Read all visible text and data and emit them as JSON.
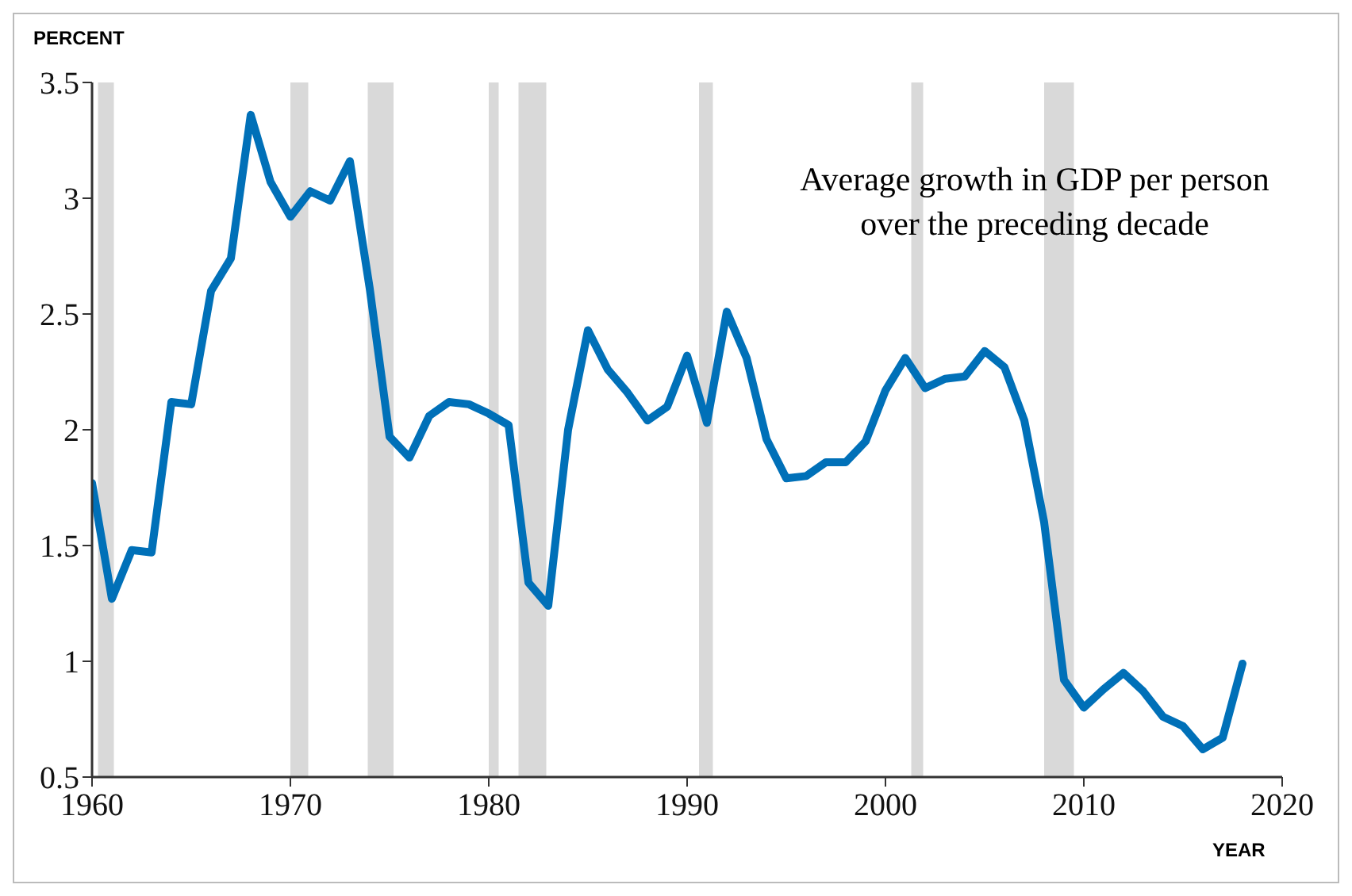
{
  "chart_data": {
    "type": "line",
    "ylabel": "PERCENT",
    "xlabel": "YEAR",
    "annotations": [
      "Average growth in GDP per person over the preceding decade"
    ],
    "x": [
      1960,
      1961,
      1962,
      1963,
      1964,
      1965,
      1966,
      1967,
      1968,
      1969,
      1970,
      1971,
      1972,
      1973,
      1974,
      1975,
      1976,
      1977,
      1978,
      1979,
      1980,
      1981,
      1982,
      1983,
      1984,
      1985,
      1986,
      1987,
      1988,
      1989,
      1990,
      1991,
      1992,
      1993,
      1994,
      1995,
      1996,
      1997,
      1998,
      1999,
      2000,
      2001,
      2002,
      2003,
      2004,
      2005,
      2006,
      2007,
      2008,
      2009,
      2010,
      2011,
      2012,
      2013,
      2014,
      2015,
      2016,
      2017,
      2018
    ],
    "series": [
      {
        "color": "#0070b8",
        "values": [
          1.77,
          1.27,
          1.48,
          1.47,
          2.12,
          2.11,
          2.6,
          2.74,
          3.36,
          3.07,
          2.92,
          3.03,
          2.99,
          3.16,
          2.61,
          1.97,
          1.88,
          2.06,
          2.12,
          2.11,
          2.07,
          2.02,
          1.34,
          1.24,
          2.0,
          2.43,
          2.26,
          2.16,
          2.04,
          2.1,
          2.32,
          2.03,
          2.51,
          2.31,
          1.96,
          1.79,
          1.8,
          1.86,
          1.86,
          1.95,
          2.17,
          2.31,
          2.18,
          2.22,
          2.23,
          2.34,
          2.27,
          2.04,
          1.6,
          0.92,
          0.8,
          0.88,
          0.95,
          0.87,
          0.76,
          0.72,
          0.62,
          0.67,
          0.99
        ]
      }
    ],
    "xlim": [
      1960,
      2020
    ],
    "xticks": [
      1960,
      1970,
      1980,
      1990,
      2000,
      2010,
      2020
    ],
    "ylim": [
      0.5,
      3.5
    ],
    "yticks": [
      0.5,
      1,
      1.5,
      2,
      2.5,
      3,
      3.5
    ],
    "bands": [
      {
        "axis": "x",
        "from": 1960.3,
        "to": 1961.1,
        "color": "#d9d9d9"
      },
      {
        "axis": "x",
        "from": 1970.0,
        "to": 1970.9,
        "color": "#d9d9d9"
      },
      {
        "axis": "x",
        "from": 1973.9,
        "to": 1975.2,
        "color": "#d9d9d9"
      },
      {
        "axis": "x",
        "from": 1980.0,
        "to": 1980.5,
        "color": "#d9d9d9"
      },
      {
        "axis": "x",
        "from": 1981.5,
        "to": 1982.9,
        "color": "#d9d9d9"
      },
      {
        "axis": "x",
        "from": 1990.6,
        "to": 1991.3,
        "color": "#d9d9d9"
      },
      {
        "axis": "x",
        "from": 2001.3,
        "to": 2001.9,
        "color": "#d9d9d9"
      },
      {
        "axis": "x",
        "from": 2008.0,
        "to": 2009.5,
        "color": "#d9d9d9"
      }
    ],
    "grid": false,
    "marker": "none",
    "line_style": "solid"
  }
}
